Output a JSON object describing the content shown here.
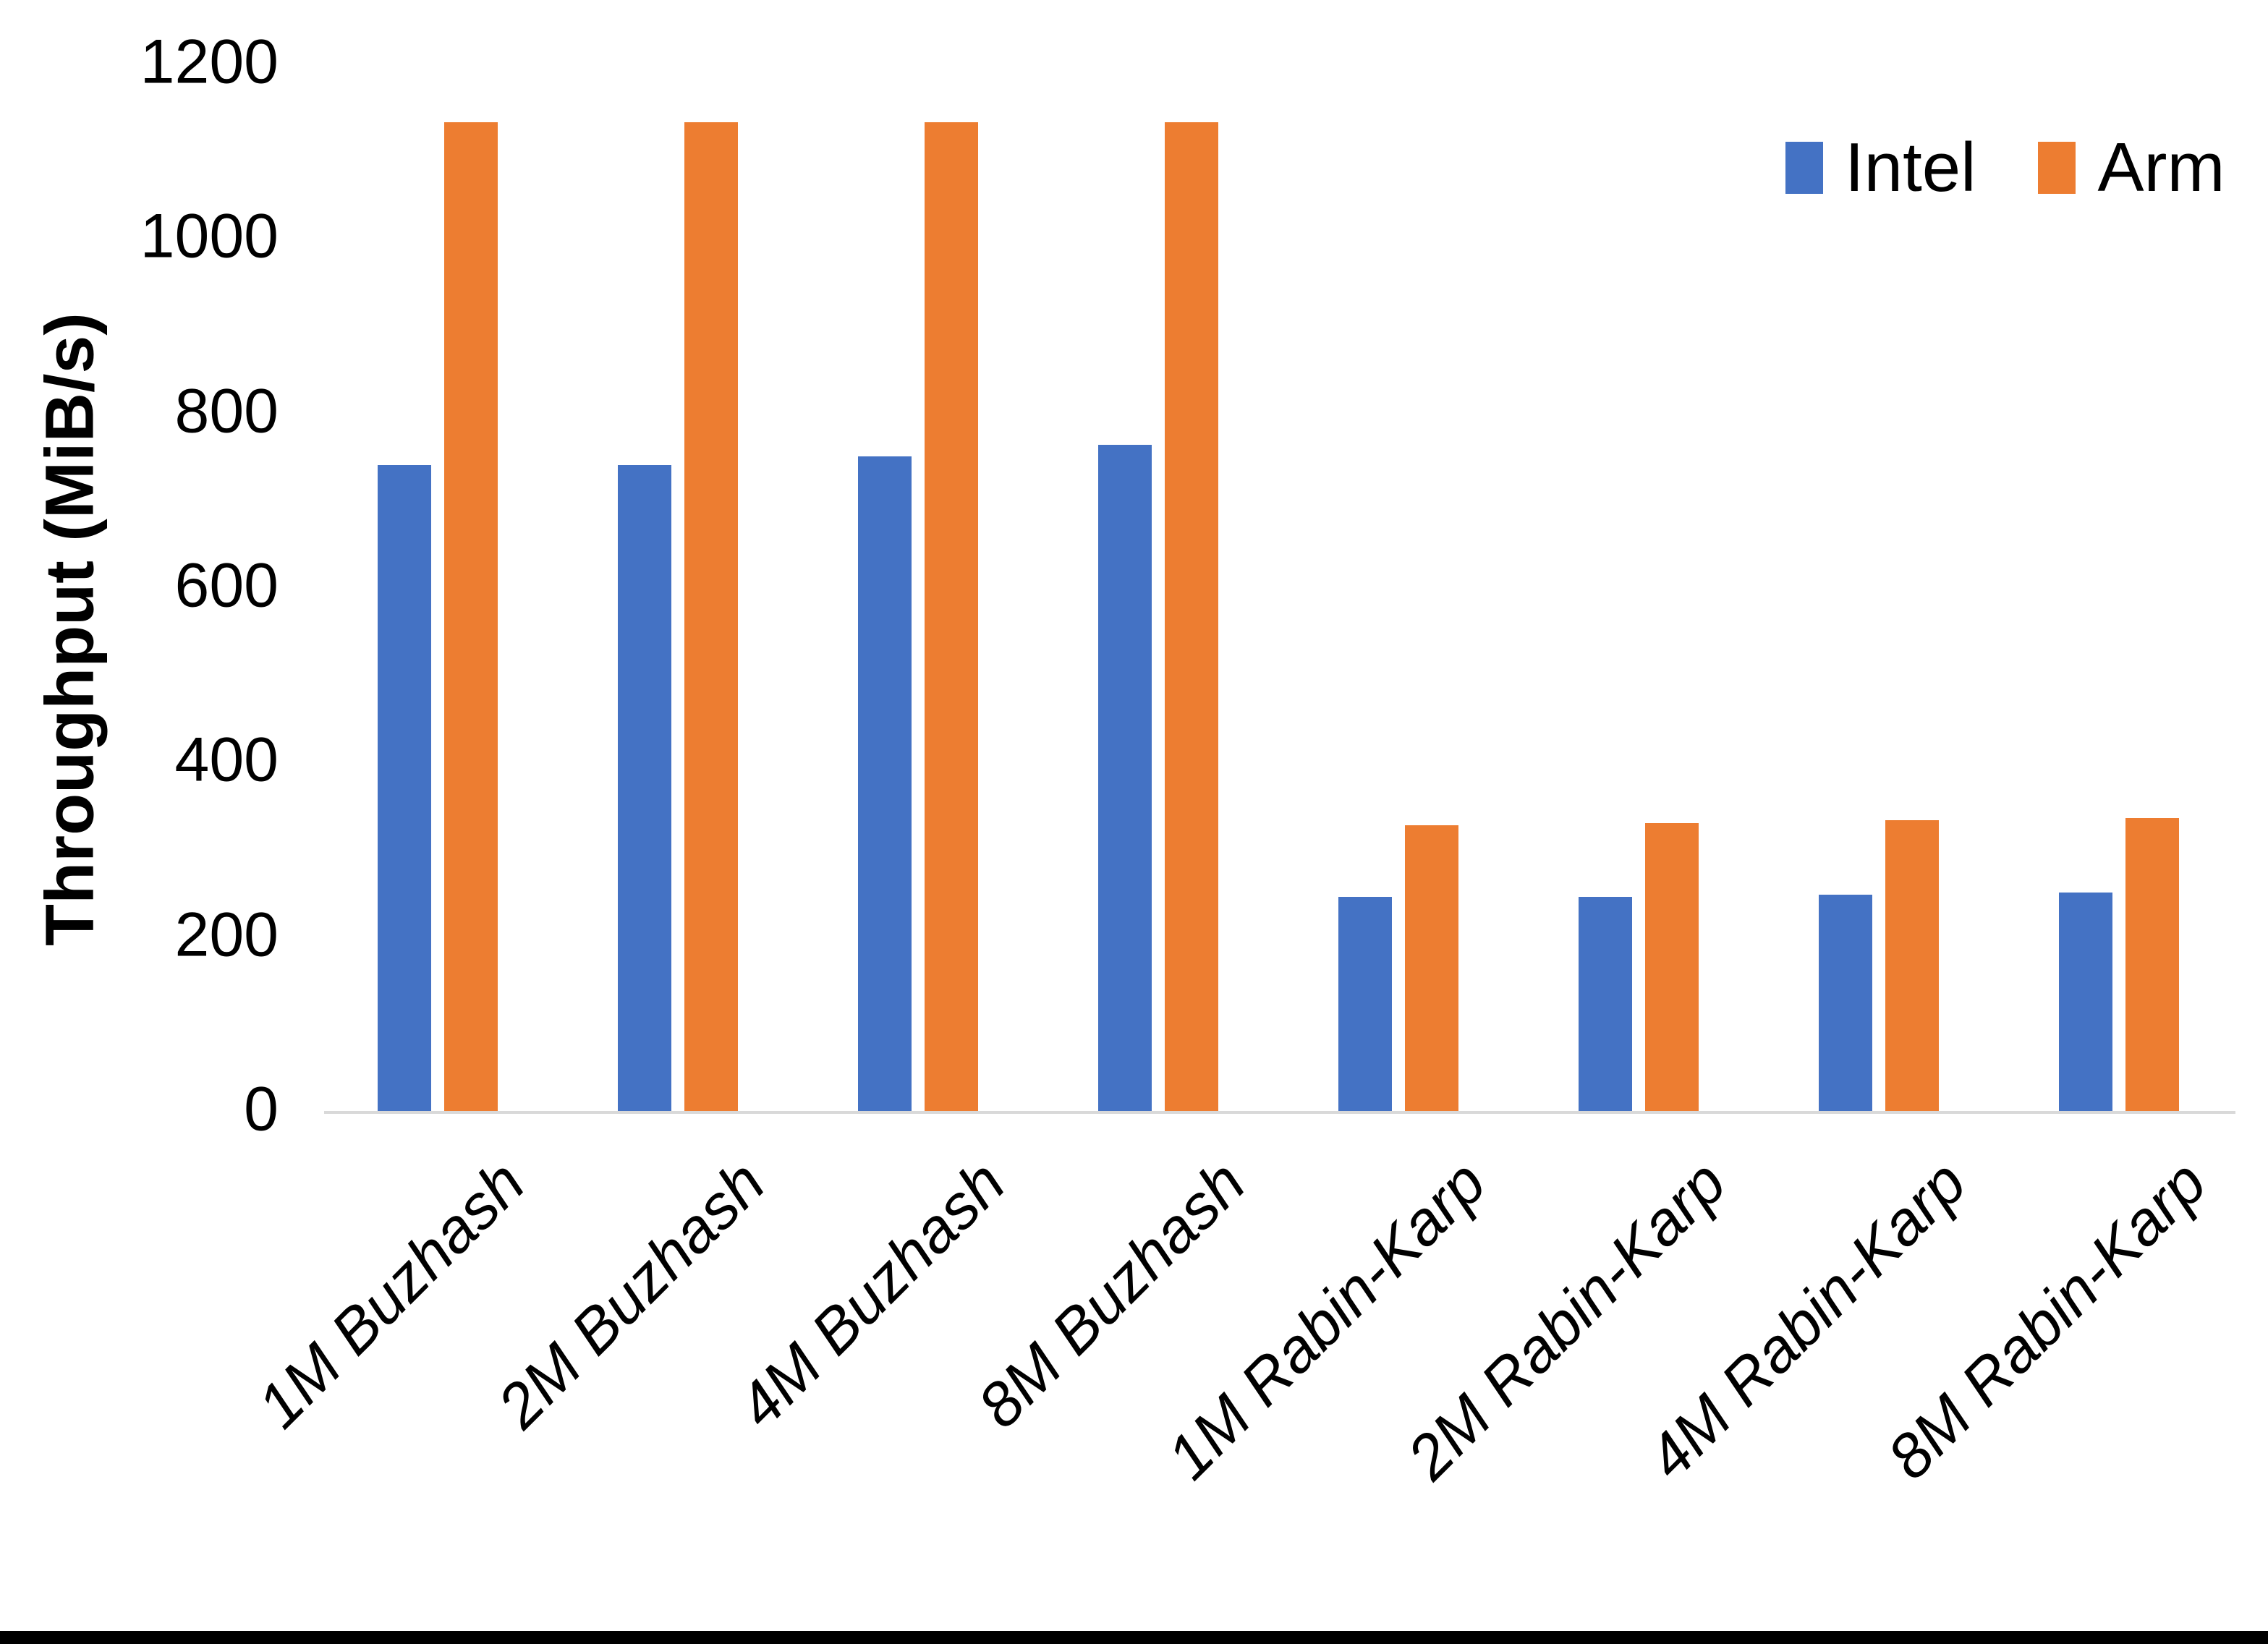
{
  "chart_data": {
    "type": "bar",
    "title": "",
    "categories": [
      "1M Buzhash",
      "2M Buzhash",
      "4M Buzhash",
      "8M Buzhash",
      "1M Rabin-Karp",
      "2M Rabin-Karp",
      "4M Rabin-Karp",
      "8M Rabin-Karp"
    ],
    "series": [
      {
        "name": "Intel",
        "color": "#4472C4",
        "values": [
          740,
          740,
          750,
          763,
          245,
          245,
          248,
          250
        ]
      },
      {
        "name": "Arm",
        "color": "#ED7D31",
        "values": [
          1133,
          1133,
          1133,
          1133,
          327,
          330,
          333,
          336
        ]
      }
    ],
    "xlabel": "",
    "ylabel": "Throughput (MiB/s)",
    "ylim": [
      0,
      1200
    ],
    "yticks": [
      0,
      200,
      400,
      600,
      800,
      1000,
      1200
    ],
    "grid": false,
    "legend_position": "top-right"
  },
  "colors": {
    "intel_blue": "#4472C4",
    "arm_orange": "#ED7D31",
    "axis_line": "#D9D9D9",
    "text": "#000000",
    "bottom_rule": "#000000",
    "background": "#FFFFFF"
  }
}
